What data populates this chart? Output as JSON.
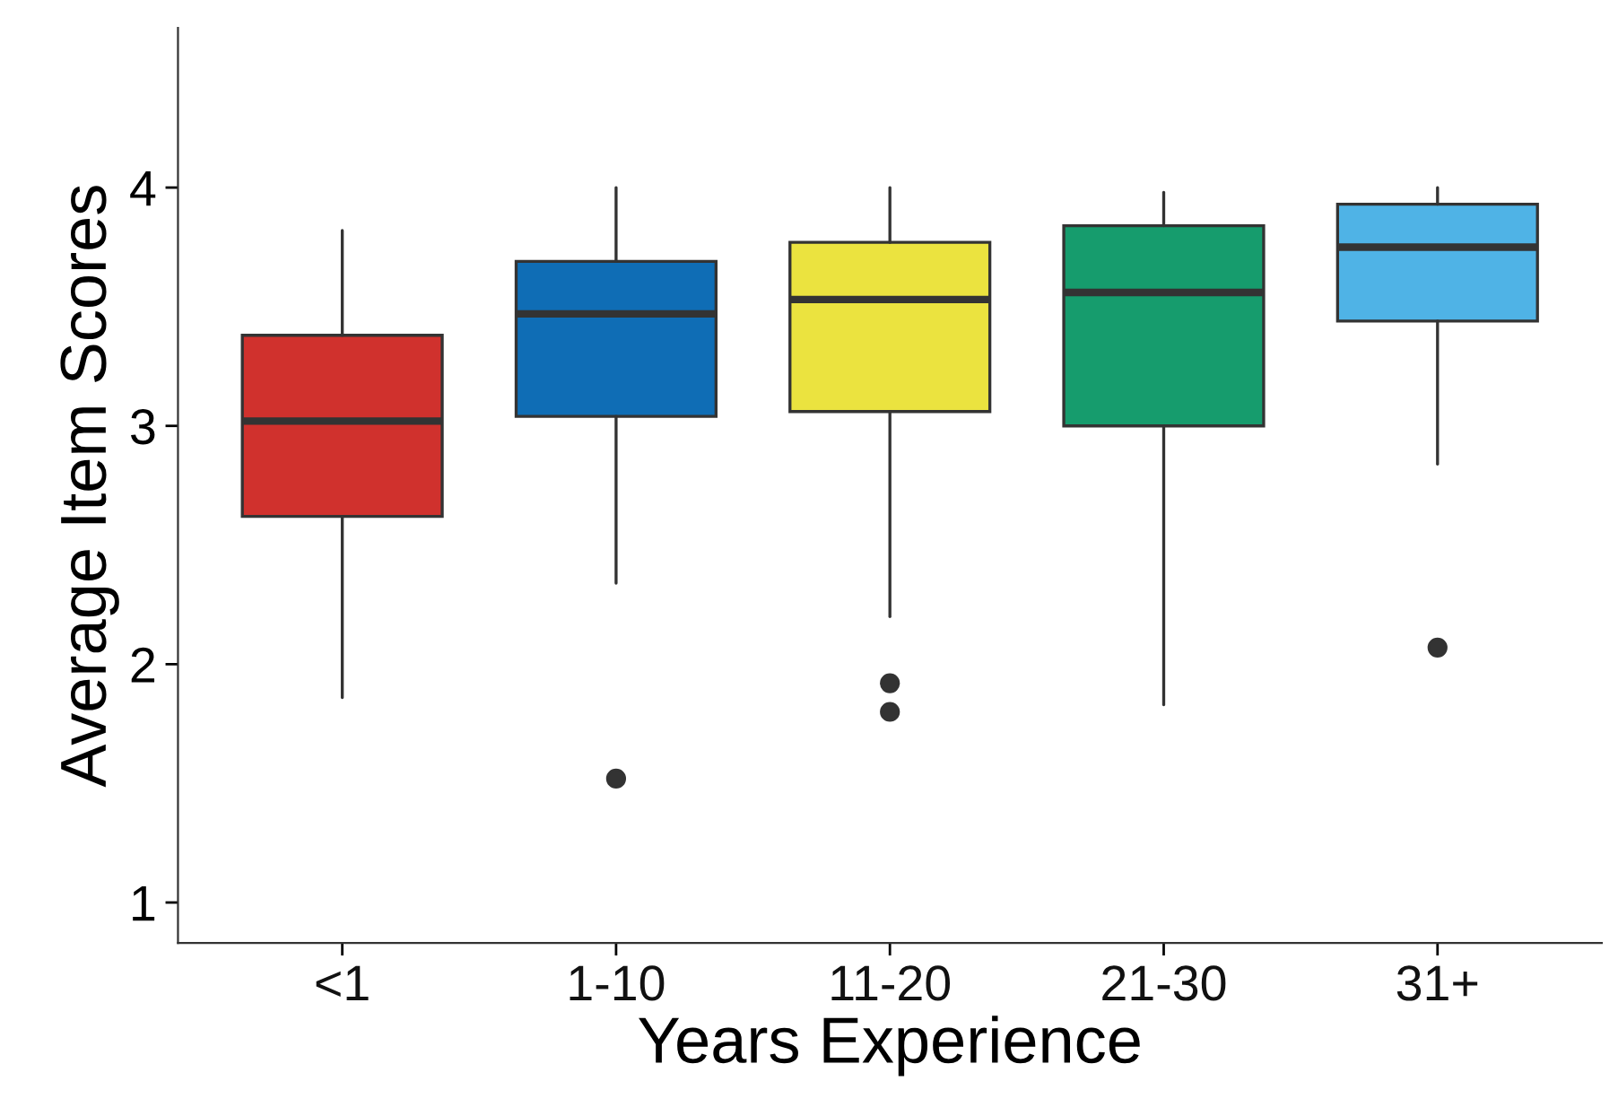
{
  "chart_data": {
    "type": "box",
    "xlabel": "Years Experience",
    "ylabel": "Average Item Scores",
    "categories": [
      "<1",
      "1-10",
      "11-20",
      "21-30",
      "31+"
    ],
    "colors": [
      "#d0312d",
      "#0f6db5",
      "#ebe33f",
      "#169c6d",
      "#4fb3e6"
    ],
    "boxes": [
      {
        "low": 1.86,
        "q1": 2.62,
        "median": 3.02,
        "q3": 3.38,
        "high": 3.82
      },
      {
        "low": 2.34,
        "q1": 3.04,
        "median": 3.47,
        "q3": 3.69,
        "high": 4.0,
        "outliers": [
          1.52
        ]
      },
      {
        "low": 2.2,
        "q1": 3.06,
        "median": 3.53,
        "q3": 3.77,
        "high": 4.0,
        "outliers": [
          1.92,
          1.8
        ]
      },
      {
        "low": 1.83,
        "q1": 3.0,
        "median": 3.56,
        "q3": 3.84,
        "high": 3.98
      },
      {
        "low": 2.84,
        "q1": 3.44,
        "median": 3.75,
        "q3": 3.93,
        "high": 4.0,
        "outliers": [
          2.07
        ]
      }
    ],
    "ylim": [
      0.83,
      4.67
    ],
    "yticks": [
      1,
      2,
      3,
      4
    ],
    "grid": false,
    "legend": false
  }
}
